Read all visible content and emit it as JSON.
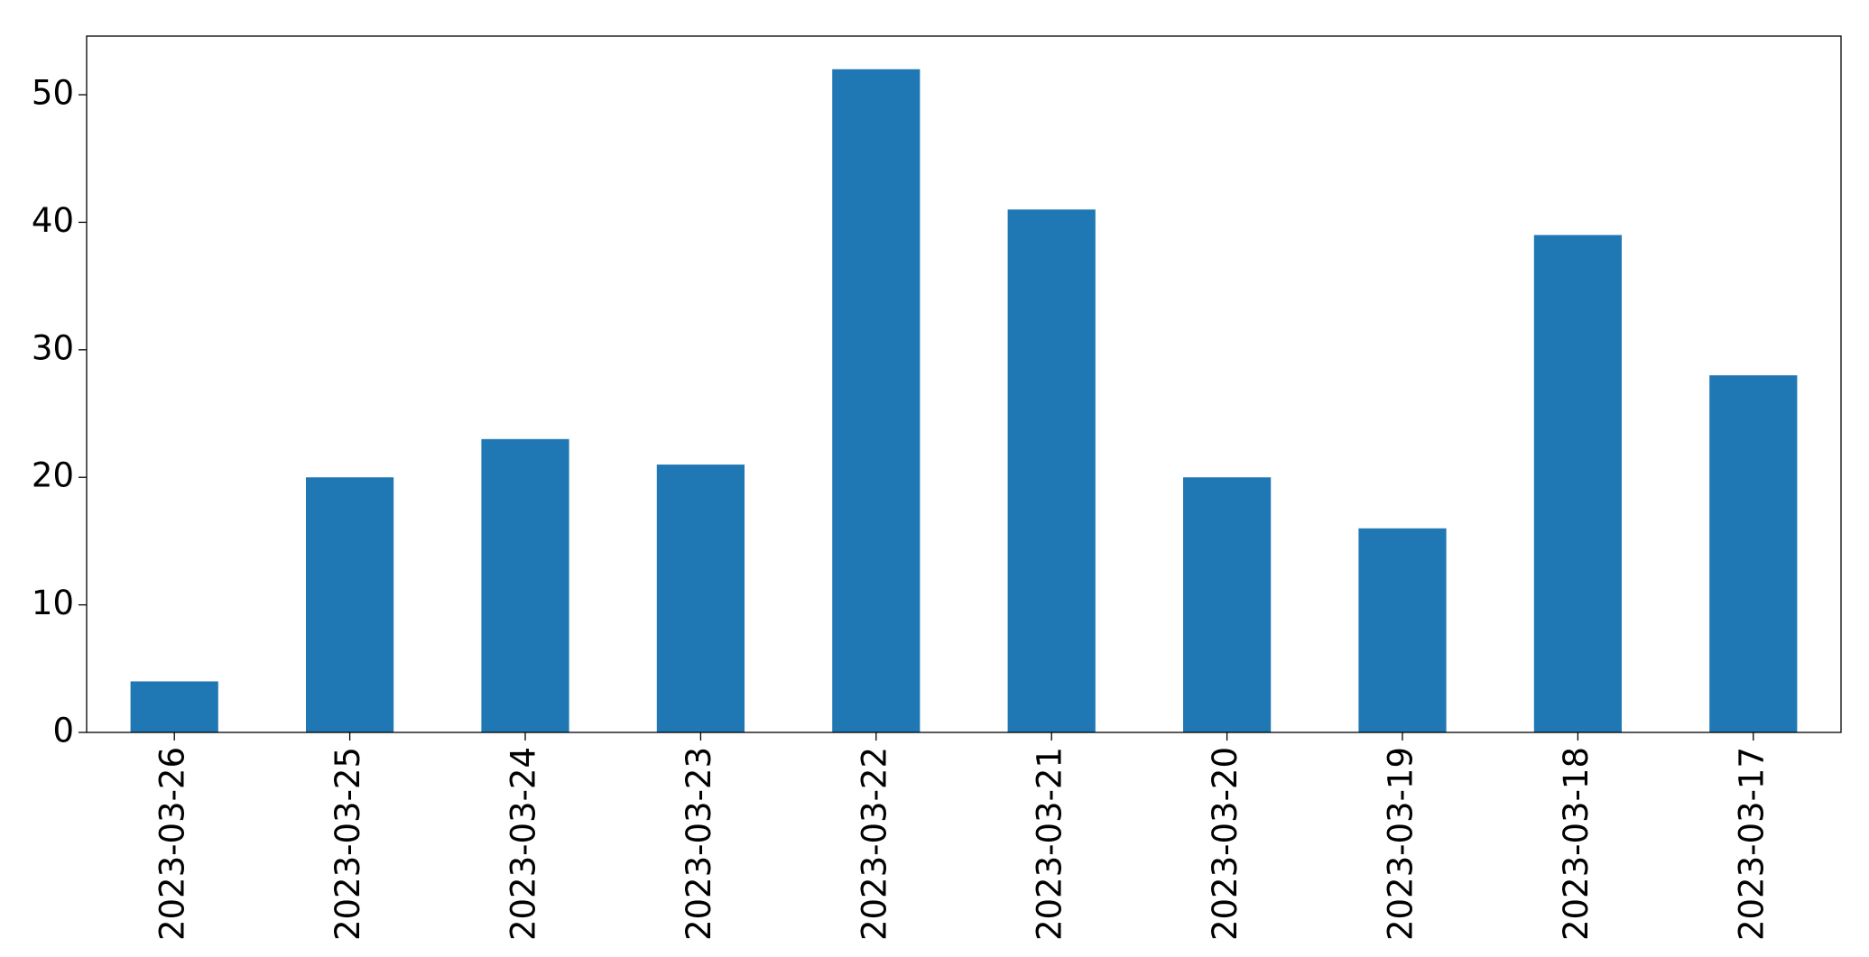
{
  "chart_data": {
    "type": "bar",
    "categories": [
      "2023-03-26",
      "2023-03-25",
      "2023-03-24",
      "2023-03-23",
      "2023-03-22",
      "2023-03-21",
      "2023-03-20",
      "2023-03-19",
      "2023-03-18",
      "2023-03-17"
    ],
    "values": [
      4,
      20,
      23,
      21,
      52,
      41,
      20,
      16,
      39,
      28
    ],
    "color": "#1f77b4",
    "ylim": [
      0,
      54.6
    ],
    "yticks": [
      0,
      10,
      20,
      30,
      40,
      50
    ],
    "grid": false
  }
}
